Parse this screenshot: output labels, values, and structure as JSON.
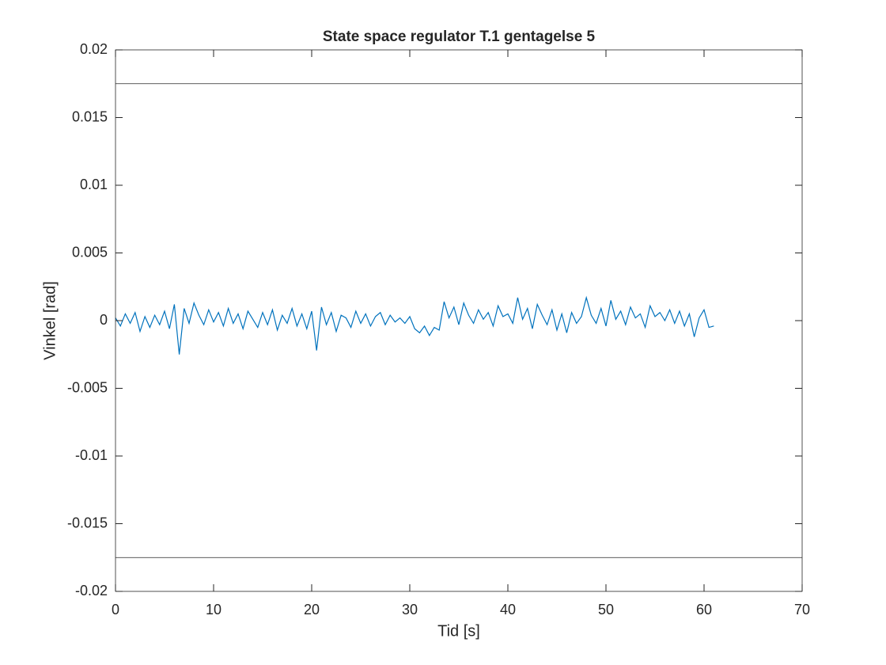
{
  "chart_data": {
    "type": "line",
    "title": "State space regulator T.1 gentagelse 5",
    "x_label": "Tid [s]",
    "y_label": "Vinkel [rad]",
    "xlim": [
      0,
      70
    ],
    "xticks": [
      0,
      10,
      20,
      30,
      40,
      50,
      60,
      70
    ],
    "ylim": [
      -0.02,
      0.02
    ],
    "yticks": [
      -0.02,
      -0.015,
      -0.01,
      -0.005,
      0,
      0.005,
      0.01,
      0.015,
      0.02
    ],
    "grid": false,
    "series": [
      {
        "color": "#0072bd",
        "x": [
          0,
          0.5,
          1,
          1.5,
          2,
          2.5,
          3,
          3.5,
          4,
          4.5,
          5,
          5.5,
          6,
          6.5,
          7,
          7.5,
          8,
          8.5,
          9,
          9.5,
          10,
          10.5,
          11,
          11.5,
          12,
          12.5,
          13,
          13.5,
          14,
          14.5,
          15,
          15.5,
          16,
          16.5,
          17,
          17.5,
          18,
          18.5,
          19,
          19.5,
          20,
          20.5,
          21,
          21.5,
          22,
          22.5,
          23,
          23.5,
          24,
          24.5,
          25,
          25.5,
          26,
          26.5,
          27,
          27.5,
          28,
          28.5,
          29,
          29.5,
          30,
          30.5,
          31,
          31.5,
          32,
          32.5,
          33,
          33.5,
          34,
          34.5,
          35,
          35.5,
          36,
          36.5,
          37,
          37.5,
          38,
          38.5,
          39,
          39.5,
          40,
          40.5,
          41,
          41.5,
          42,
          42.5,
          43,
          43.5,
          44,
          44.5,
          45,
          45.5,
          46,
          46.5,
          47,
          47.5,
          48,
          48.5,
          49,
          49.5,
          50,
          50.5,
          51,
          51.5,
          52,
          52.5,
          53,
          53.5,
          54,
          54.5,
          55,
          55.5,
          56,
          56.5,
          57,
          57.5,
          58,
          58.5,
          59,
          59.5,
          60,
          60.5,
          61
        ],
        "values": [
          0.0002,
          -0.0004,
          0.0005,
          -0.0002,
          0.0006,
          -0.0008,
          0.0003,
          -0.0005,
          0.0004,
          -0.0003,
          0.0007,
          -0.0006,
          0.0012,
          -0.0025,
          0.0009,
          -0.0002,
          0.0013,
          0.0004,
          -0.0003,
          0.0008,
          -0.0001,
          0.0006,
          -0.0004,
          0.0009,
          -0.0002,
          0.0005,
          -0.0006,
          0.0007,
          0.0001,
          -0.0005,
          0.0006,
          -0.0003,
          0.0008,
          -0.0007,
          0.0004,
          -0.0002,
          0.0009,
          -0.0004,
          0.0005,
          -0.0006,
          0.0007,
          -0.0022,
          0.001,
          -0.0003,
          0.0006,
          -0.0008,
          0.0004,
          0.0002,
          -0.0005,
          0.0007,
          -0.0002,
          0.0005,
          -0.0004,
          0.0003,
          0.0006,
          -0.0003,
          0.0004,
          -0.0001,
          0.0002,
          -0.0002,
          0.0003,
          -0.0006,
          -0.0009,
          -0.0004,
          -0.0011,
          -0.0005,
          -0.0007,
          0.0014,
          0.0002,
          0.001,
          -0.0003,
          0.0013,
          0.0004,
          -0.0002,
          0.0008,
          0.0001,
          0.0006,
          -0.0004,
          0.0011,
          0.0003,
          0.0005,
          -0.0002,
          0.0017,
          0.0001,
          0.0009,
          -0.0006,
          0.0012,
          0.0004,
          -0.0003,
          0.0008,
          -0.0007,
          0.0005,
          -0.0009,
          0.0006,
          -0.0002,
          0.0003,
          0.0017,
          0.0004,
          -0.0002,
          0.0009,
          -0.0004,
          0.0015,
          0.0001,
          0.0007,
          -0.0003,
          0.001,
          0.0002,
          0.0005,
          -0.0005,
          0.0011,
          0.0003,
          0.0006,
          0.0,
          0.0008,
          -0.0002,
          0.0007,
          -0.0004,
          0.0005,
          -0.0012,
          0.0002,
          0.0008,
          -0.0005,
          -0.0004
        ]
      },
      {
        "color": "#262626",
        "x": [
          0,
          70
        ],
        "values": [
          0.0175,
          0.0175
        ]
      },
      {
        "color": "#262626",
        "x": [
          0,
          70
        ],
        "values": [
          -0.0175,
          -0.0175
        ]
      }
    ]
  }
}
